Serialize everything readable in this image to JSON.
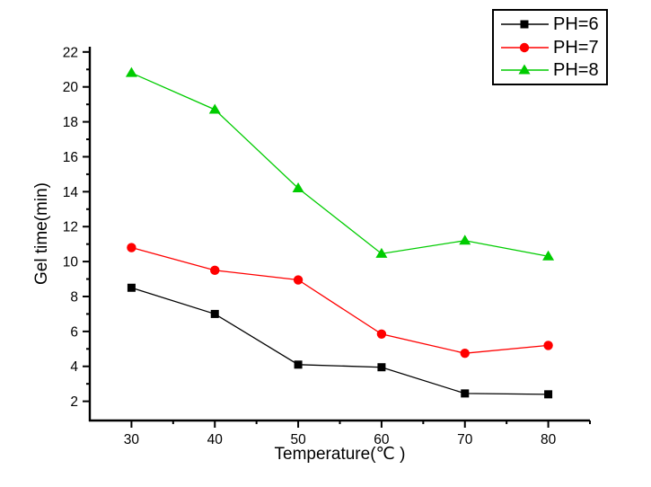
{
  "figure": {
    "background": "#FFFFFF",
    "axis_color": "#000000"
  },
  "chart_data": {
    "type": "line",
    "title": "",
    "xlabel": "Temperature(℃ )",
    "ylabel": "Gel time(min)",
    "x": [
      30,
      40,
      50,
      60,
      70,
      80
    ],
    "xlim": [
      25,
      85
    ],
    "ylim": [
      0.9,
      22.3
    ],
    "x_major_ticks": [
      30,
      40,
      50,
      60,
      70,
      80
    ],
    "x_minor_ticks": [
      35,
      45,
      55,
      65,
      75,
      85
    ],
    "y_major_ticks": [
      2,
      4,
      6,
      8,
      10,
      12,
      14,
      16,
      18,
      20,
      22
    ],
    "y_minor_ticks": [
      3,
      5,
      7,
      9,
      11,
      13,
      15,
      17,
      19,
      21
    ],
    "grid": false,
    "legend_position": "top-right",
    "series": [
      {
        "name": "PH=6",
        "marker": "square",
        "color": "#000000",
        "values": [
          8.5,
          7.0,
          4.1,
          3.95,
          2.45,
          2.4
        ]
      },
      {
        "name": "PH=7",
        "marker": "circle",
        "color": "#FF0000",
        "values": [
          10.8,
          9.5,
          8.95,
          5.85,
          4.75,
          5.2
        ]
      },
      {
        "name": "PH=8",
        "marker": "triangle",
        "color": "#00CC00",
        "values": [
          20.8,
          18.7,
          14.2,
          10.45,
          11.2,
          10.3
        ]
      }
    ]
  }
}
